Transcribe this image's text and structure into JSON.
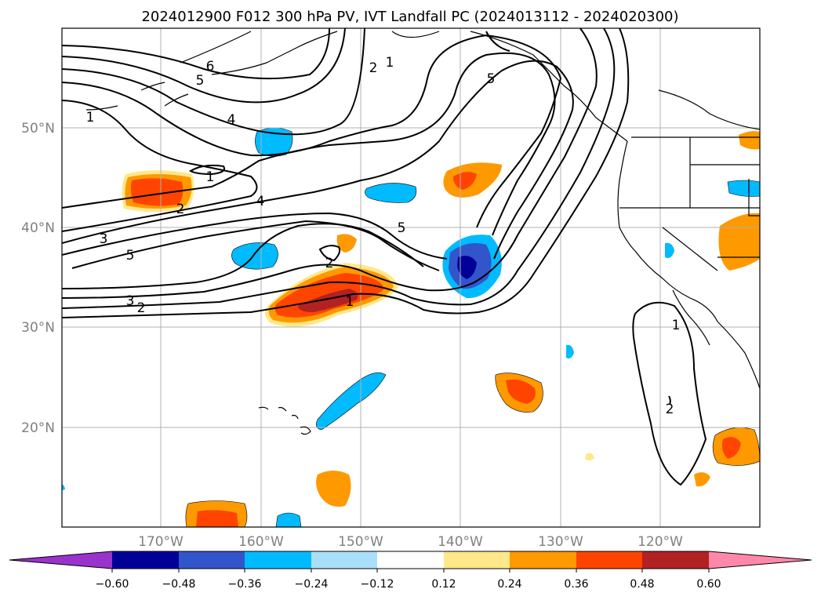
{
  "title": "2024012900 F012 300 hPa PV, IVT Landfall PC (2024013112 - 2024020300)",
  "map": {
    "lat_labels": [
      "50°N",
      "40°N",
      "30°N",
      "20°N"
    ],
    "lon_labels": [
      "170°W",
      "160°W",
      "150°W",
      "140°W",
      "130°W",
      "120°W"
    ]
  },
  "contour_labels": [
    "6",
    "5",
    "4",
    "1",
    "1",
    "2",
    "3",
    "5",
    "4",
    "5",
    "2",
    "2",
    "1",
    "5",
    "3",
    "2",
    "1",
    "1",
    "2"
  ],
  "colorbar": {
    "ticks": [
      "−0.60",
      "−0.48",
      "−0.36",
      "−0.24",
      "−0.12",
      "0.12",
      "0.24",
      "0.36",
      "0.48",
      "0.60"
    ],
    "colors": [
      "#9933cc",
      "#000099",
      "#3355cc",
      "#00bbff",
      "#aadffa",
      "#ffffff",
      "#ffe88a",
      "#ff9900",
      "#ff4400",
      "#b22222",
      "#ff88aa"
    ]
  }
}
